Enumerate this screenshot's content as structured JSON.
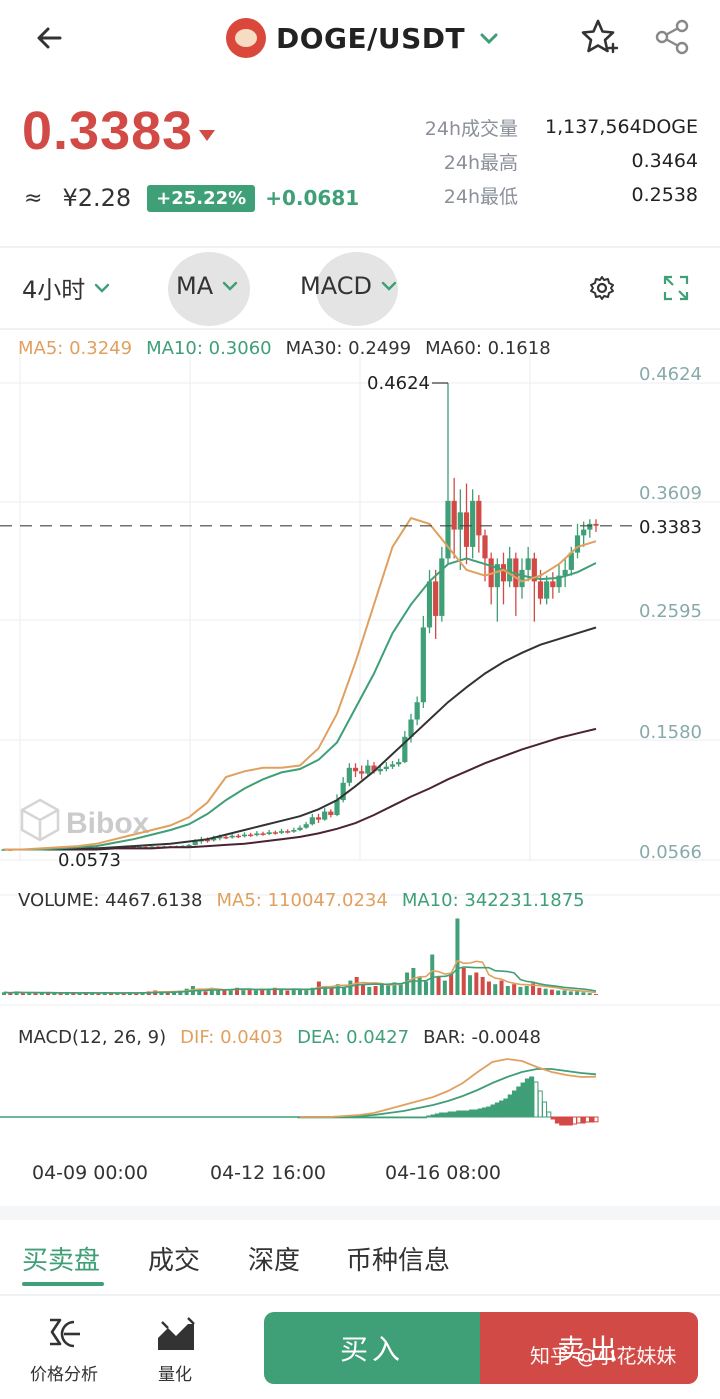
{
  "header": {
    "pair": "DOGE/USDT",
    "icons": {
      "back": "back-arrow-icon",
      "coin": "doge-coin-icon",
      "caret": "chevron-down-icon",
      "favorite": "star-add-icon",
      "share": "share-icon"
    }
  },
  "ticker": {
    "last_price": "0.3383",
    "approx_symbol": "≈",
    "cny_price": "¥2.28",
    "change_pct": "+25.22%",
    "change_abs": "+0.0681",
    "stats": [
      {
        "label": "24h成交量",
        "value": "1,137,564DOGE"
      },
      {
        "label": "24h最高",
        "value": "0.3464"
      },
      {
        "label": "24h最低",
        "value": "0.2538"
      }
    ]
  },
  "toolbar": {
    "timeframe": "4小时",
    "main_indicator": "MA",
    "sub_indicator": "MACD"
  },
  "ma_legend": [
    {
      "label": "MA5: 0.3249",
      "color": "#e0a060"
    },
    {
      "label": "MA10: 0.3060",
      "color": "#3f9f77"
    },
    {
      "label": "MA30: 0.2499",
      "color": "#333333"
    },
    {
      "label": "MA60: 0.1618",
      "color": "#333333"
    }
  ],
  "price_axis": {
    "ticks": [
      "0.4624",
      "0.3609",
      "0.2595",
      "0.1580",
      "0.0566"
    ],
    "current_price_label": "0.3383",
    "high_marker": "0.4624",
    "low_marker": "0.0573"
  },
  "watermark": "Bibox",
  "volume_legend": [
    {
      "label": "VOLUME: 4467.6138",
      "color": "#333333"
    },
    {
      "label": "MA5: 110047.0234",
      "color": "#e0a060"
    },
    {
      "label": "MA10: 342231.1875",
      "color": "#3f9f77"
    }
  ],
  "macd_legend": [
    {
      "label": "MACD(12, 26, 9)",
      "color": "#333333"
    },
    {
      "label": "DIF: 0.0403",
      "color": "#e0a060"
    },
    {
      "label": "DEA: 0.0427",
      "color": "#3f9f77"
    },
    {
      "label": "BAR: -0.0048",
      "color": "#333333"
    }
  ],
  "time_axis": [
    "04-09 00:00",
    "04-12 16:00",
    "04-16 08:00"
  ],
  "tabs": [
    "买卖盘",
    "成交",
    "深度",
    "币种信息"
  ],
  "bottom": {
    "analysis_label": "价格分析",
    "quant_label": "量化",
    "buy_label": "买入",
    "sell_label": "卖出",
    "watermark": "知乎 @小花妹妹"
  },
  "colors": {
    "up": "#3f9f77",
    "down": "#d24a45",
    "ma5": "#e0a060",
    "ma10": "#3f9f77",
    "ma30": "#333333",
    "ma60": "#4a2433"
  },
  "chart_data": {
    "type": "candlestick",
    "ylim": [
      0.0566,
      0.4624
    ],
    "candles": [
      [
        0.0566,
        0.0572,
        0.056,
        0.0578
      ],
      [
        0.0572,
        0.0571,
        0.0565,
        0.0576
      ],
      [
        0.0571,
        0.0574,
        0.0567,
        0.0579
      ],
      [
        0.0574,
        0.0573,
        0.0568,
        0.0578
      ],
      [
        0.0573,
        0.0576,
        0.057,
        0.058
      ],
      [
        0.0576,
        0.0575,
        0.0571,
        0.058
      ],
      [
        0.0575,
        0.0578,
        0.0572,
        0.0583
      ],
      [
        0.0578,
        0.0577,
        0.0573,
        0.0582
      ],
      [
        0.0577,
        0.058,
        0.0574,
        0.0585
      ],
      [
        0.058,
        0.0579,
        0.0575,
        0.0584
      ],
      [
        0.0579,
        0.0582,
        0.0576,
        0.0587
      ],
      [
        0.0582,
        0.0581,
        0.0577,
        0.0586
      ],
      [
        0.0581,
        0.0584,
        0.0578,
        0.0589
      ],
      [
        0.0584,
        0.0583,
        0.0579,
        0.0588
      ],
      [
        0.0583,
        0.0586,
        0.058,
        0.0591
      ],
      [
        0.0586,
        0.0585,
        0.0581,
        0.059
      ],
      [
        0.0585,
        0.0588,
        0.0582,
        0.0593
      ],
      [
        0.0588,
        0.0587,
        0.0583,
        0.0592
      ],
      [
        0.0587,
        0.059,
        0.0584,
        0.0595
      ],
      [
        0.059,
        0.0589,
        0.0585,
        0.0594
      ],
      [
        0.0589,
        0.0592,
        0.0586,
        0.0597
      ],
      [
        0.0592,
        0.0591,
        0.0587,
        0.0596
      ],
      [
        0.0591,
        0.0594,
        0.0588,
        0.0599
      ],
      [
        0.0594,
        0.0593,
        0.0589,
        0.0598
      ],
      [
        0.0593,
        0.0596,
        0.059,
        0.0601
      ],
      [
        0.0596,
        0.0595,
        0.0591,
        0.06
      ],
      [
        0.0595,
        0.0598,
        0.0592,
        0.0603
      ],
      [
        0.0598,
        0.0597,
        0.0593,
        0.0602
      ],
      [
        0.0597,
        0.06,
        0.0594,
        0.0605
      ],
      [
        0.06,
        0.0602,
        0.0596,
        0.0608
      ],
      [
        0.0602,
        0.061,
        0.0598,
        0.0618
      ],
      [
        0.061,
        0.064,
        0.0606,
        0.066
      ],
      [
        0.064,
        0.0655,
        0.062,
        0.068
      ],
      [
        0.0655,
        0.065,
        0.063,
        0.0675
      ],
      [
        0.065,
        0.067,
        0.064,
        0.069
      ],
      [
        0.067,
        0.068,
        0.065,
        0.07
      ],
      [
        0.068,
        0.0675,
        0.066,
        0.07
      ],
      [
        0.0675,
        0.069,
        0.0665,
        0.071
      ],
      [
        0.069,
        0.0685,
        0.067,
        0.0705
      ],
      [
        0.0685,
        0.07,
        0.0675,
        0.072
      ],
      [
        0.07,
        0.0695,
        0.068,
        0.0715
      ],
      [
        0.0695,
        0.071,
        0.0685,
        0.073
      ],
      [
        0.071,
        0.0705,
        0.069,
        0.0725
      ],
      [
        0.0705,
        0.072,
        0.0695,
        0.074
      ],
      [
        0.072,
        0.0715,
        0.07,
        0.0735
      ],
      [
        0.0715,
        0.073,
        0.0705,
        0.075
      ],
      [
        0.073,
        0.0725,
        0.071,
        0.0745
      ],
      [
        0.0725,
        0.074,
        0.0715,
        0.076
      ],
      [
        0.074,
        0.076,
        0.073,
        0.078
      ],
      [
        0.076,
        0.079,
        0.075,
        0.081
      ],
      [
        0.079,
        0.085,
        0.078,
        0.088
      ],
      [
        0.085,
        0.083,
        0.08,
        0.088
      ],
      [
        0.083,
        0.09,
        0.082,
        0.093
      ],
      [
        0.09,
        0.087,
        0.085,
        0.092
      ],
      [
        0.087,
        0.1,
        0.086,
        0.105
      ],
      [
        0.1,
        0.115,
        0.098,
        0.12
      ],
      [
        0.115,
        0.128,
        0.112,
        0.132
      ],
      [
        0.128,
        0.125,
        0.12,
        0.132
      ],
      [
        0.125,
        0.123,
        0.118,
        0.13
      ],
      [
        0.123,
        0.13,
        0.12,
        0.135
      ],
      [
        0.13,
        0.125,
        0.123,
        0.133
      ],
      [
        0.125,
        0.127,
        0.122,
        0.131
      ],
      [
        0.127,
        0.129,
        0.125,
        0.133
      ],
      [
        0.129,
        0.131,
        0.127,
        0.134
      ],
      [
        0.131,
        0.133,
        0.129,
        0.136
      ],
      [
        0.133,
        0.155,
        0.132,
        0.16
      ],
      [
        0.155,
        0.17,
        0.15,
        0.175
      ],
      [
        0.17,
        0.185,
        0.165,
        0.19
      ],
      [
        0.185,
        0.25,
        0.18,
        0.26
      ],
      [
        0.25,
        0.29,
        0.245,
        0.3
      ],
      [
        0.29,
        0.26,
        0.24,
        0.3
      ],
      [
        0.26,
        0.31,
        0.255,
        0.32
      ],
      [
        0.31,
        0.36,
        0.305,
        0.4624
      ],
      [
        0.36,
        0.335,
        0.31,
        0.38
      ],
      [
        0.335,
        0.35,
        0.3,
        0.37
      ],
      [
        0.35,
        0.32,
        0.305,
        0.375
      ],
      [
        0.32,
        0.36,
        0.31,
        0.37
      ],
      [
        0.36,
        0.33,
        0.315,
        0.365
      ],
      [
        0.33,
        0.31,
        0.29,
        0.335
      ],
      [
        0.31,
        0.285,
        0.27,
        0.315
      ],
      [
        0.285,
        0.305,
        0.255,
        0.31
      ],
      [
        0.305,
        0.29,
        0.27,
        0.315
      ],
      [
        0.29,
        0.31,
        0.285,
        0.32
      ],
      [
        0.31,
        0.285,
        0.26,
        0.315
      ],
      [
        0.285,
        0.3,
        0.275,
        0.31
      ],
      [
        0.3,
        0.31,
        0.29,
        0.32
      ],
      [
        0.31,
        0.29,
        0.255,
        0.315
      ],
      [
        0.29,
        0.275,
        0.27,
        0.3
      ],
      [
        0.275,
        0.29,
        0.27,
        0.295
      ],
      [
        0.29,
        0.285,
        0.275,
        0.298
      ],
      [
        0.285,
        0.295,
        0.28,
        0.305
      ],
      [
        0.295,
        0.3,
        0.285,
        0.31
      ],
      [
        0.3,
        0.315,
        0.295,
        0.32
      ],
      [
        0.315,
        0.33,
        0.31,
        0.34
      ],
      [
        0.33,
        0.335,
        0.32,
        0.342
      ],
      [
        0.335,
        0.34,
        0.328,
        0.344
      ],
      [
        0.34,
        0.3383,
        0.333,
        0.344
      ]
    ],
    "ma5": [
      0.057,
      0.057,
      0.058,
      0.059,
      0.06,
      0.062,
      0.066,
      0.07,
      0.074,
      0.078,
      0.085,
      0.098,
      0.12,
      0.125,
      0.128,
      0.128,
      0.13,
      0.145,
      0.175,
      0.22,
      0.27,
      0.32,
      0.345,
      0.34,
      0.32,
      0.3,
      0.295,
      0.3,
      0.29,
      0.295,
      0.305,
      0.32,
      0.3249
    ],
    "ma10": [
      0.057,
      0.057,
      0.057,
      0.058,
      0.059,
      0.06,
      0.063,
      0.066,
      0.07,
      0.074,
      0.079,
      0.088,
      0.1,
      0.11,
      0.118,
      0.124,
      0.127,
      0.135,
      0.15,
      0.18,
      0.21,
      0.245,
      0.27,
      0.29,
      0.305,
      0.31,
      0.305,
      0.3,
      0.295,
      0.292,
      0.293,
      0.298,
      0.306
    ],
    "ma30": [
      0.057,
      0.057,
      0.057,
      0.057,
      0.058,
      0.058,
      0.059,
      0.06,
      0.061,
      0.062,
      0.064,
      0.066,
      0.07,
      0.074,
      0.078,
      0.082,
      0.086,
      0.092,
      0.1,
      0.112,
      0.125,
      0.14,
      0.155,
      0.17,
      0.185,
      0.198,
      0.21,
      0.22,
      0.228,
      0.235,
      0.24,
      0.245,
      0.2499
    ],
    "ma60": [
      0.057,
      0.057,
      0.057,
      0.057,
      0.057,
      0.057,
      0.058,
      0.058,
      0.058,
      0.059,
      0.059,
      0.06,
      0.061,
      0.062,
      0.064,
      0.066,
      0.068,
      0.071,
      0.075,
      0.08,
      0.087,
      0.095,
      0.103,
      0.11,
      0.118,
      0.125,
      0.132,
      0.138,
      0.144,
      0.149,
      0.154,
      0.158,
      0.1618
    ],
    "volume": [
      0.3,
      0.2,
      0.4,
      0.2,
      0.3,
      0.2,
      0.2,
      0.3,
      0.2,
      0.2,
      0.3,
      0.2,
      0.2,
      0.3,
      0.2,
      0.2,
      0.3,
      0.2,
      0.2,
      0.2,
      0.3,
      0.2,
      0.3,
      0.4,
      0.5,
      0.3,
      0.3,
      0.4,
      0.5,
      0.7,
      1.0,
      0.6,
      0.4,
      0.8,
      0.5,
      0.6,
      0.5,
      0.8,
      0.6,
      0.7,
      0.5,
      0.6,
      0.7,
      0.8,
      0.6,
      0.5,
      0.6,
      0.7,
      0.6,
      0.8,
      1.5,
      1.0,
      0.8,
      1.2,
      0.9,
      1.6,
      2.0,
      1.2,
      0.9,
      1.0,
      1.3,
      1.1,
      1.4,
      1.2,
      2.5,
      3.0,
      2.0,
      1.5,
      4.5,
      2.0,
      1.6,
      2.5,
      8.5,
      3.0,
      2.2,
      2.5,
      2.0,
      1.5,
      1.2,
      1.6,
      1.0,
      1.2,
      0.9,
      1.0,
      1.3,
      0.8,
      0.7,
      0.6,
      0.5,
      0.5,
      0.4,
      0.4,
      0.3,
      0.2,
      0.1
    ],
    "macd_bar": [
      0.0,
      0.0,
      0.0,
      0.0,
      0.0,
      0.0,
      0.0,
      0.0,
      0.0,
      0.0,
      0.0,
      0.0,
      0.0,
      0.0,
      0.0,
      0.0,
      0.0,
      0.0,
      0.0,
      0.0,
      0.0,
      0.0,
      0.0,
      0.0,
      0.0,
      0.0,
      0.0,
      0.0,
      0.0,
      0.0,
      0.001,
      0.002,
      0.003,
      0.004,
      0.004,
      0.005,
      0.005,
      0.006,
      0.006,
      0.006,
      0.007,
      0.007,
      0.008,
      0.009,
      0.01,
      0.012,
      0.014,
      0.016,
      0.018,
      0.022,
      0.026,
      0.03,
      0.034,
      0.038,
      0.04,
      0.035,
      0.026,
      0.015,
      0.005,
      -0.002,
      -0.006,
      -0.008,
      -0.008,
      -0.008,
      -0.007,
      -0.006,
      -0.006,
      -0.005,
      -0.005,
      -0.0048
    ],
    "dif": [
      0.0,
      0.0,
      0.0,
      0.001,
      0.002,
      0.004,
      0.008,
      0.012,
      0.016,
      0.02,
      0.026,
      0.034,
      0.045,
      0.055,
      0.058,
      0.056,
      0.05,
      0.045,
      0.042,
      0.04,
      0.0403
    ],
    "dea": [
      0.0,
      0.0,
      0.0,
      0.0,
      0.001,
      0.002,
      0.004,
      0.006,
      0.009,
      0.012,
      0.016,
      0.021,
      0.027,
      0.034,
      0.04,
      0.045,
      0.048,
      0.048,
      0.046,
      0.044,
      0.0427
    ]
  }
}
